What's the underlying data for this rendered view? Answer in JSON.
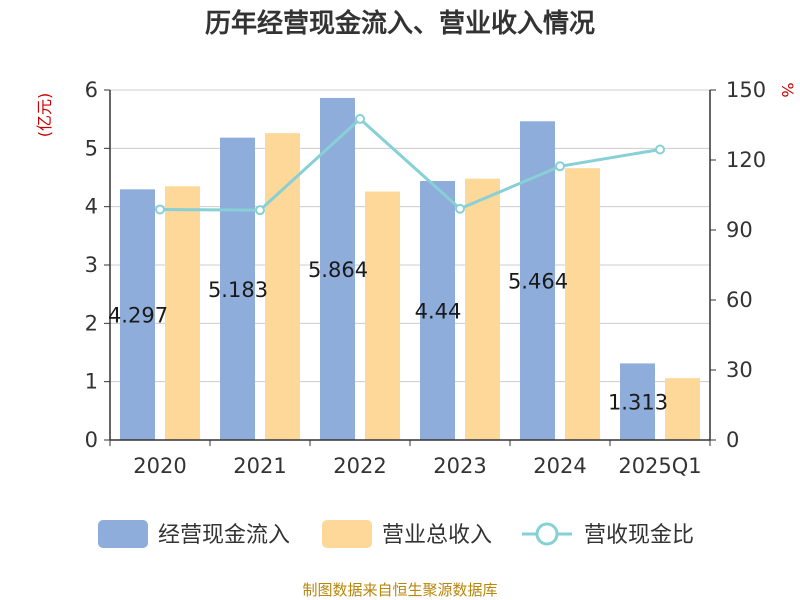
{
  "chart_data": {
    "type": "bar",
    "title": "历年经营现金流入、营业收入情况",
    "categories": [
      "2020",
      "2021",
      "2022",
      "2023",
      "2024",
      "2025Q1"
    ],
    "left_axis": {
      "unit": "(亿元)",
      "ylim": [
        0,
        6
      ],
      "ticks": [
        "0",
        "1",
        "2",
        "3",
        "4",
        "5",
        "6"
      ]
    },
    "right_axis": {
      "unit": "%",
      "ylim": [
        0,
        150
      ],
      "ticks": [
        "0",
        "30",
        "60",
        "90",
        "120",
        "150"
      ]
    },
    "series": [
      {
        "name": "经营现金流入",
        "kind": "bar",
        "axis": "left",
        "values": [
          4.297,
          5.183,
          5.864,
          4.44,
          5.464,
          1.313
        ],
        "labels": [
          "4.297",
          "5.183",
          "5.864",
          "4.44",
          "5.464",
          "1.313"
        ]
      },
      {
        "name": "营业总收入",
        "kind": "bar",
        "axis": "left",
        "values": [
          4.35,
          5.26,
          4.26,
          4.48,
          4.66,
          1.06
        ]
      },
      {
        "name": "营收现金比",
        "kind": "line",
        "axis": "right",
        "values": [
          98.8,
          98.5,
          137.6,
          99.1,
          117.3,
          124.5
        ]
      }
    ],
    "grid": true,
    "legend": "bottom"
  },
  "colors": {
    "bar1": "#8eadda",
    "bar2": "#fed899",
    "line": "#86d0d6",
    "unit": "#cc0000",
    "source": "#b8860b",
    "grid": "#cccccc",
    "axis": "#333333"
  },
  "source": "制图数据来自恒生聚源数据库"
}
